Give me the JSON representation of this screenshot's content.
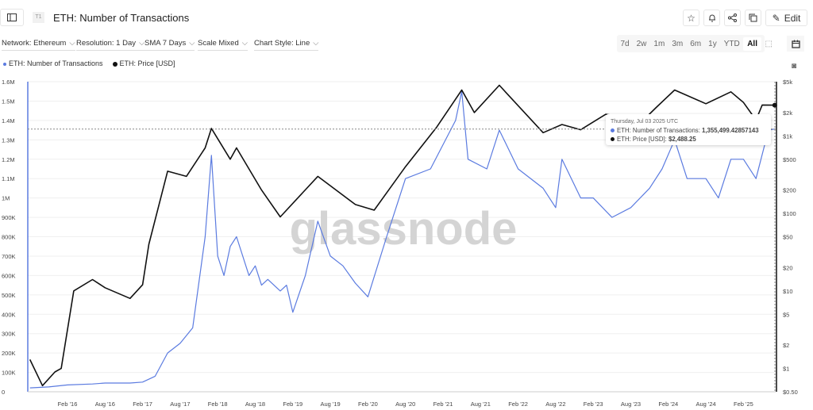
{
  "header": {
    "badge": "T1",
    "title": "ETH: Number of Transactions",
    "edit_label": "Edit"
  },
  "icons": [
    "sidebar-toggle-icon",
    "star-icon",
    "bell-icon",
    "share-icon",
    "copy-icon",
    "pencil-icon",
    "zoom-select-icon",
    "calendar-icon",
    "camera-icon"
  ],
  "filters": [
    {
      "label": "Network: Ethereum"
    },
    {
      "label": "Resolution: 1 Day"
    },
    {
      "label": "SMA 7 Days"
    },
    {
      "label": "Scale Mixed"
    },
    {
      "label": "Chart Style: Line"
    }
  ],
  "ranges": [
    "7d",
    "2w",
    "1m",
    "3m",
    "6m",
    "1y",
    "YTD",
    "All"
  ],
  "active_range": "All",
  "watermark": "glassnode",
  "tooltip": {
    "date": "Thursday, Jul 03 2025 UTC",
    "tx_label": "ETH: Number of Transactions:",
    "tx_value": "1,355,499.42857143",
    "price_label": "ETH: Price [USD]:",
    "price_value": "$2,488.25"
  },
  "chart_data": {
    "type": "line",
    "left_axis": {
      "scale": "linear",
      "ylim": [
        0,
        1600000
      ],
      "ticks": [
        "0",
        "100K",
        "200K",
        "300K",
        "400K",
        "500K",
        "600K",
        "700K",
        "800K",
        "900K",
        "1M",
        "1.1M",
        "1.2M",
        "1.3M",
        "1.4M",
        "1.5M",
        "1.6M"
      ]
    },
    "right_axis": {
      "scale": "log",
      "ylim": [
        0.5,
        5000
      ],
      "ticks": [
        "$0.50",
        "$1",
        "$2",
        "$5",
        "$10",
        "$20",
        "$50",
        "$100",
        "$200",
        "$500",
        "$1k",
        "$2k",
        "$5k"
      ]
    },
    "x_ticks": [
      "Feb '16",
      "Aug '16",
      "Feb '17",
      "Aug '17",
      "Feb '18",
      "Aug '18",
      "Feb '19",
      "Aug '19",
      "Feb '20",
      "Aug '20",
      "Feb '21",
      "Aug '21",
      "Feb '22",
      "Aug '22",
      "Feb '23",
      "Aug '23",
      "Feb '24",
      "Aug '24",
      "Feb '25"
    ],
    "grid": true,
    "legend": "top-left",
    "series": [
      {
        "name": "ETH: Number of Transactions",
        "color": "#5b7be0",
        "axis": "left",
        "points": [
          [
            "2015-08",
            20000
          ],
          [
            "2015-11",
            25000
          ],
          [
            "2016-02",
            35000
          ],
          [
            "2016-06",
            40000
          ],
          [
            "2016-08",
            45000
          ],
          [
            "2016-12",
            45000
          ],
          [
            "2017-02",
            50000
          ],
          [
            "2017-04",
            80000
          ],
          [
            "2017-06",
            200000
          ],
          [
            "2017-08",
            250000
          ],
          [
            "2017-10",
            330000
          ],
          [
            "2017-12",
            800000
          ],
          [
            "2018-01",
            1220000
          ],
          [
            "2018-02",
            700000
          ],
          [
            "2018-03",
            600000
          ],
          [
            "2018-04",
            750000
          ],
          [
            "2018-05",
            800000
          ],
          [
            "2018-07",
            600000
          ],
          [
            "2018-08",
            650000
          ],
          [
            "2018-09",
            550000
          ],
          [
            "2018-10",
            580000
          ],
          [
            "2018-12",
            520000
          ],
          [
            "2019-01",
            550000
          ],
          [
            "2019-02",
            410000
          ],
          [
            "2019-04",
            600000
          ],
          [
            "2019-06",
            880000
          ],
          [
            "2019-08",
            700000
          ],
          [
            "2019-10",
            650000
          ],
          [
            "2019-12",
            560000
          ],
          [
            "2020-02",
            490000
          ],
          [
            "2020-05",
            800000
          ],
          [
            "2020-08",
            1100000
          ],
          [
            "2020-12",
            1150000
          ],
          [
            "2021-04",
            1400000
          ],
          [
            "2021-05",
            1550000
          ],
          [
            "2021-06",
            1200000
          ],
          [
            "2021-09",
            1150000
          ],
          [
            "2021-11",
            1350000
          ],
          [
            "2022-02",
            1150000
          ],
          [
            "2022-06",
            1050000
          ],
          [
            "2022-08",
            950000
          ],
          [
            "2022-09",
            1200000
          ],
          [
            "2022-12",
            1000000
          ],
          [
            "2023-02",
            1000000
          ],
          [
            "2023-05",
            900000
          ],
          [
            "2023-08",
            950000
          ],
          [
            "2023-11",
            1050000
          ],
          [
            "2024-01",
            1150000
          ],
          [
            "2024-03",
            1300000
          ],
          [
            "2024-05",
            1100000
          ],
          [
            "2024-08",
            1100000
          ],
          [
            "2024-10",
            1000000
          ],
          [
            "2024-12",
            1200000
          ],
          [
            "2025-02",
            1200000
          ],
          [
            "2025-04",
            1100000
          ],
          [
            "2025-06",
            1350000
          ],
          [
            "2025-07",
            1355499
          ]
        ]
      },
      {
        "name": "ETH: Price [USD]",
        "color": "#111111",
        "axis": "right",
        "points": [
          [
            "2015-08",
            1.3
          ],
          [
            "2015-10",
            0.6
          ],
          [
            "2015-12",
            0.9
          ],
          [
            "2016-01",
            1.0
          ],
          [
            "2016-03",
            10
          ],
          [
            "2016-06",
            14
          ],
          [
            "2016-08",
            11
          ],
          [
            "2016-12",
            8
          ],
          [
            "2017-02",
            12
          ],
          [
            "2017-03",
            40
          ],
          [
            "2017-06",
            350
          ],
          [
            "2017-09",
            300
          ],
          [
            "2017-12",
            700
          ],
          [
            "2018-01",
            1250
          ],
          [
            "2018-04",
            500
          ],
          [
            "2018-05",
            700
          ],
          [
            "2018-09",
            200
          ],
          [
            "2018-12",
            90
          ],
          [
            "2019-06",
            300
          ],
          [
            "2019-12",
            130
          ],
          [
            "2020-03",
            110
          ],
          [
            "2020-08",
            400
          ],
          [
            "2021-01",
            1300
          ],
          [
            "2021-05",
            3900
          ],
          [
            "2021-07",
            2000
          ],
          [
            "2021-11",
            4500
          ],
          [
            "2022-01",
            3000
          ],
          [
            "2022-06",
            1100
          ],
          [
            "2022-09",
            1400
          ],
          [
            "2022-12",
            1200
          ],
          [
            "2023-04",
            1900
          ],
          [
            "2023-06",
            1800
          ],
          [
            "2023-10",
            1600
          ],
          [
            "2023-12",
            2300
          ],
          [
            "2024-03",
            3900
          ],
          [
            "2024-08",
            2600
          ],
          [
            "2024-12",
            3700
          ],
          [
            "2025-02",
            2700
          ],
          [
            "2025-04",
            1600
          ],
          [
            "2025-05",
            2500
          ],
          [
            "2025-07",
            2488.25
          ]
        ]
      }
    ]
  }
}
